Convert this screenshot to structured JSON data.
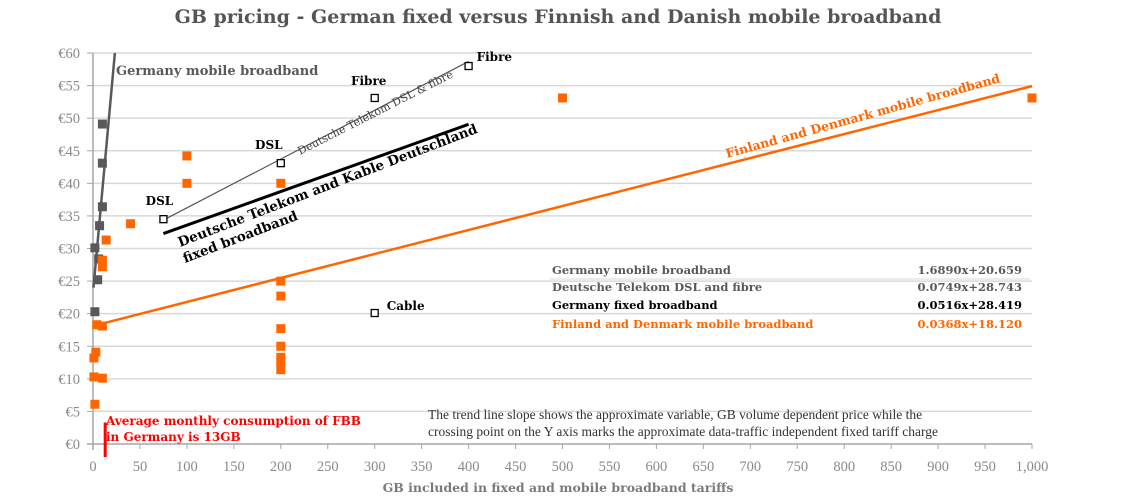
{
  "chart_data": {
    "type": "scatter",
    "title": "GB pricing - German fixed versus Finnish and Danish mobile broadband",
    "xlabel": "GB included in fixed and mobile broadband tariffs",
    "ylabel": "",
    "xlim": [
      0,
      1000
    ],
    "ylim": [
      0,
      60
    ],
    "grid": true,
    "x_ticks": [
      "0",
      "50",
      "100",
      "150",
      "200",
      "250",
      "300",
      "350",
      "400",
      "450",
      "500",
      "550",
      "600",
      "650",
      "700",
      "750",
      "800",
      "850",
      "900",
      "950",
      "1,000"
    ],
    "x_tick_values": [
      0,
      50,
      100,
      150,
      200,
      250,
      300,
      350,
      400,
      450,
      500,
      550,
      600,
      650,
      700,
      750,
      800,
      850,
      900,
      950,
      1000
    ],
    "y_ticks": [
      "€0",
      "€5",
      "€10",
      "€15",
      "€20",
      "€25",
      "€30",
      "€35",
      "€40",
      "€45",
      "€50",
      "€55",
      "€60"
    ],
    "y_tick_values": [
      0,
      5,
      10,
      15,
      20,
      25,
      30,
      35,
      40,
      45,
      50,
      55,
      60
    ],
    "colors": {
      "germany_mobile": "#595959",
      "fin_den_mobile": "#ff6600",
      "dt_dsl_fibre": "#000000",
      "fixed_line": "#000000",
      "avg_marker": "#ff0000"
    },
    "series": [
      {
        "name": "Germany mobile broadband",
        "marker": "filled-square",
        "color": "#595959",
        "points": [
          [
            10,
            49.1
          ],
          [
            10,
            43.1
          ],
          [
            10,
            36.4
          ],
          [
            7,
            33.5
          ],
          [
            2,
            30.1
          ],
          [
            6,
            28.4
          ],
          [
            5,
            25.2
          ],
          [
            2,
            20.3
          ]
        ]
      },
      {
        "name": "Finland and Denmark mobile broadband",
        "marker": "filled-square",
        "color": "#ff6600",
        "points": [
          [
            14,
            31.3
          ],
          [
            40,
            33.8
          ],
          [
            100,
            44.2
          ],
          [
            100,
            40
          ],
          [
            200,
            40
          ],
          [
            200,
            25
          ],
          [
            200,
            22.7
          ],
          [
            200,
            17.7
          ],
          [
            200,
            15
          ],
          [
            200,
            13.3
          ],
          [
            200,
            12.6
          ],
          [
            200,
            11.4
          ],
          [
            500,
            53.1
          ],
          [
            1000,
            53.1
          ],
          [
            10,
            28.2
          ],
          [
            10,
            27.2
          ],
          [
            4,
            18.3
          ],
          [
            10,
            18.1
          ],
          [
            3,
            14.1
          ],
          [
            1,
            13.2
          ],
          [
            1,
            10.3
          ],
          [
            10,
            10.1
          ],
          [
            2,
            6.1
          ]
        ]
      },
      {
        "name": "Deutsche Telekom DSL and fibre",
        "marker": "hollow-square",
        "color": "#000000",
        "points": [
          {
            "x": 75,
            "y": 34.5,
            "label": "DSL"
          },
          {
            "x": 200,
            "y": 43.1,
            "label": "DSL"
          },
          {
            "x": 300,
            "y": 53.1,
            "label": "Fibre"
          },
          {
            "x": 400,
            "y": 58,
            "label": "Fibre"
          },
          {
            "x": 300,
            "y": 20.1,
            "label": "Cable"
          }
        ]
      }
    ],
    "trendlines": [
      {
        "name": "Germany mobile broadband",
        "slope": 1.689,
        "intercept": 20.659,
        "equation": "1.6890x+20.659",
        "x_range": [
          0,
          23.5
        ],
        "color": "#595959",
        "label": "Germany mobile broadband"
      },
      {
        "name": "Deutsche Telekom DSL and fibre",
        "slope": 0.0749,
        "intercept": 28.743,
        "equation": "0.0749x+28.743",
        "x_range": [
          75,
          400
        ],
        "color": "#555555",
        "label": "Deutsche Telekom DSL & fibre"
      },
      {
        "name": "Germany fixed broadband",
        "slope": 0.0516,
        "intercept": 28.419,
        "equation": "0.0516x+28.419",
        "x_range": [
          75,
          400
        ],
        "color": "#000000",
        "label": "Deutsche Telekom and Kable Deutschland fixed broadband"
      },
      {
        "name": "Finland and Denmark mobile broadband",
        "slope": 0.0368,
        "intercept": 18.12,
        "equation": "0.0368x+18.120",
        "x_range": [
          0,
          1000
        ],
        "color": "#ff6600",
        "label": "Finland and Denmark mobile broadband"
      }
    ],
    "legend_table": [
      {
        "label": "Germany mobile broadband",
        "equation": "1.6890x+20.659",
        "color": "#595959"
      },
      {
        "label": "Deutsche Telekom DSL and fibre",
        "equation": "0.0749x+28.743",
        "color": "#595959"
      },
      {
        "label": "Germany fixed broadband",
        "equation": "0.0516x+28.419",
        "color": "#000000"
      },
      {
        "label": "Finland and Denmark mobile broadband",
        "equation": "0.0368x+18.120",
        "color": "#ff6600"
      }
    ],
    "legend_placement": "center-right",
    "annotations": {
      "avg_consumption": {
        "x": 13,
        "lines": [
          "Average  monthly consumption of FBB",
          "in Germany is 13GB"
        ],
        "color": "#ff0000"
      },
      "fixed_line_label": [
        "Deutsche Telekom and Kable Deutschland",
        "fixed broadband"
      ],
      "note": [
        "The trend line slope shows the approximate variable, GB volume dependent price while the",
        "crossing point on the Y axis marks the approximate data-traffic independent fixed tariff charge"
      ]
    }
  }
}
